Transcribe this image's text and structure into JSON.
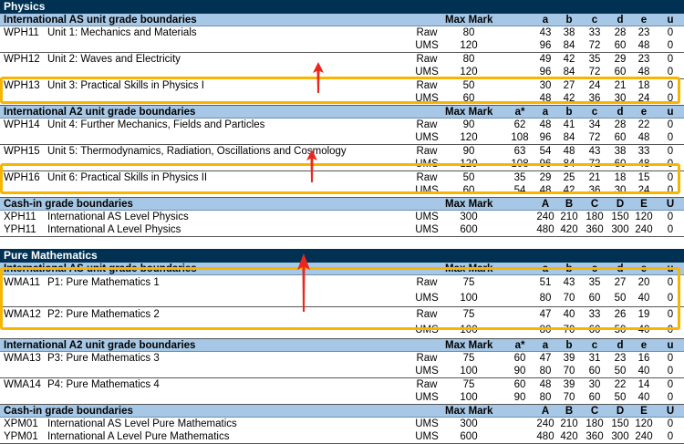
{
  "colors": {
    "title_bg": "#003153",
    "header_bg": "#a6c8e6",
    "highlight": "#f7b500",
    "arrow": "#e8281e"
  },
  "subjects": [
    {
      "title": "Physics",
      "sections": [
        {
          "header": "International AS unit grade boundaries",
          "max_label": "Max Mark",
          "cols": [
            "",
            "a",
            "b",
            "c",
            "d",
            "e",
            "u"
          ],
          "units": [
            {
              "code": "WPH11",
              "name": "Unit 1: Mechanics and Materials",
              "rows": [
                {
                  "type": "Raw",
                  "max": "80",
                  "g": [
                    "",
                    "43",
                    "38",
                    "33",
                    "28",
                    "23",
                    "0"
                  ]
                },
                {
                  "type": "UMS",
                  "max": "120",
                  "g": [
                    "",
                    "96",
                    "84",
                    "72",
                    "60",
                    "48",
                    "0"
                  ]
                }
              ]
            },
            {
              "code": "WPH12",
              "name": "Unit 2: Waves and Electricity",
              "rows": [
                {
                  "type": "Raw",
                  "max": "80",
                  "g": [
                    "",
                    "49",
                    "42",
                    "35",
                    "29",
                    "23",
                    "0"
                  ]
                },
                {
                  "type": "UMS",
                  "max": "120",
                  "g": [
                    "",
                    "96",
                    "84",
                    "72",
                    "60",
                    "48",
                    "0"
                  ]
                }
              ]
            },
            {
              "code": "WPH13",
              "name": "Unit 3: Practical Skills in Physics I",
              "rows": [
                {
                  "type": "Raw",
                  "max": "50",
                  "g": [
                    "",
                    "30",
                    "27",
                    "24",
                    "21",
                    "18",
                    "0"
                  ]
                },
                {
                  "type": "UMS",
                  "max": "60",
                  "g": [
                    "",
                    "48",
                    "42",
                    "36",
                    "30",
                    "24",
                    "0"
                  ]
                }
              ]
            }
          ]
        },
        {
          "header": "International A2 unit grade boundaries",
          "max_label": "Max Mark",
          "cols": [
            "a*",
            "a",
            "b",
            "c",
            "d",
            "e",
            "u"
          ],
          "units": [
            {
              "code": "WPH14",
              "name": "Unit 4: Further Mechanics, Fields and Particles",
              "rows": [
                {
                  "type": "Raw",
                  "max": "90",
                  "g": [
                    "62",
                    "48",
                    "41",
                    "34",
                    "28",
                    "22",
                    "0"
                  ]
                },
                {
                  "type": "UMS",
                  "max": "120",
                  "g": [
                    "108",
                    "96",
                    "84",
                    "72",
                    "60",
                    "48",
                    "0"
                  ]
                }
              ]
            },
            {
              "code": "WPH15",
              "name": "Unit 5: Thermodynamics, Radiation, Oscillations and Cosmology",
              "rows": [
                {
                  "type": "Raw",
                  "max": "90",
                  "g": [
                    "63",
                    "54",
                    "48",
                    "43",
                    "38",
                    "33",
                    "0"
                  ]
                },
                {
                  "type": "UMS",
                  "max": "120",
                  "g": [
                    "108",
                    "96",
                    "84",
                    "72",
                    "60",
                    "48",
                    "0"
                  ]
                }
              ]
            },
            {
              "code": "WPH16",
              "name": "Unit 6: Practical Skills in Physics II",
              "rows": [
                {
                  "type": "Raw",
                  "max": "50",
                  "g": [
                    "35",
                    "29",
                    "25",
                    "21",
                    "18",
                    "15",
                    "0"
                  ]
                },
                {
                  "type": "UMS",
                  "max": "60",
                  "g": [
                    "54",
                    "48",
                    "42",
                    "36",
                    "30",
                    "24",
                    "0"
                  ]
                }
              ]
            }
          ]
        },
        {
          "header": "Cash-in grade boundaries",
          "max_label": "Max Mark",
          "cols": [
            "",
            "A",
            "B",
            "C",
            "D",
            "E",
            "U"
          ],
          "units": [
            {
              "code": "XPH11",
              "name": "International AS Level Physics",
              "single": true,
              "rows": [
                {
                  "type": "UMS",
                  "max": "300",
                  "g": [
                    "",
                    "240",
                    "210",
                    "180",
                    "150",
                    "120",
                    "0"
                  ]
                }
              ]
            },
            {
              "code": "YPH11",
              "name": "International A Level Physics",
              "rows": [
                {
                  "type": "UMS",
                  "max": "600",
                  "g": [
                    "",
                    "480",
                    "420",
                    "360",
                    "300",
                    "240",
                    "0"
                  ]
                }
              ]
            }
          ]
        }
      ]
    },
    {
      "title": "Pure Mathematics",
      "sections": [
        {
          "header": "International AS unit grade boundaries",
          "max_label": "Max Mark",
          "cols": [
            "",
            "a",
            "b",
            "c",
            "d",
            "e",
            "u"
          ],
          "tall": true,
          "units": [
            {
              "code": "WMA11",
              "name": "P1: Pure Mathematics 1",
              "rows": [
                {
                  "type": "Raw",
                  "max": "75",
                  "g": [
                    "",
                    "51",
                    "43",
                    "35",
                    "27",
                    "20",
                    "0"
                  ]
                },
                {
                  "type": "UMS",
                  "max": "100",
                  "g": [
                    "",
                    "80",
                    "70",
                    "60",
                    "50",
                    "40",
                    "0"
                  ]
                }
              ]
            },
            {
              "code": "WMA12",
              "name": "P2: Pure Mathematics 2",
              "rows": [
                {
                  "type": "Raw",
                  "max": "75",
                  "g": [
                    "",
                    "47",
                    "40",
                    "33",
                    "26",
                    "19",
                    "0"
                  ]
                },
                {
                  "type": "UMS",
                  "max": "100",
                  "g": [
                    "",
                    "80",
                    "70",
                    "60",
                    "50",
                    "40",
                    "0"
                  ]
                }
              ]
            }
          ]
        },
        {
          "header": "International A2 unit grade boundaries",
          "max_label": "Max Mark",
          "cols": [
            "a*",
            "a",
            "b",
            "c",
            "d",
            "e",
            "u"
          ],
          "units": [
            {
              "code": "WMA13",
              "name": "P3: Pure Mathematics 3",
              "rows": [
                {
                  "type": "Raw",
                  "max": "75",
                  "g": [
                    "60",
                    "47",
                    "39",
                    "31",
                    "23",
                    "16",
                    "0"
                  ]
                },
                {
                  "type": "UMS",
                  "max": "100",
                  "g": [
                    "90",
                    "80",
                    "70",
                    "60",
                    "50",
                    "40",
                    "0"
                  ]
                }
              ]
            },
            {
              "code": "WMA14",
              "name": "P4: Pure Mathematics 4",
              "rows": [
                {
                  "type": "Raw",
                  "max": "75",
                  "g": [
                    "60",
                    "48",
                    "39",
                    "30",
                    "22",
                    "14",
                    "0"
                  ]
                },
                {
                  "type": "UMS",
                  "max": "100",
                  "g": [
                    "90",
                    "80",
                    "70",
                    "60",
                    "50",
                    "40",
                    "0"
                  ]
                }
              ]
            }
          ]
        },
        {
          "header": "Cash-in grade boundaries",
          "max_label": "Max Mark",
          "cols": [
            "",
            "A",
            "B",
            "C",
            "D",
            "E",
            "U"
          ],
          "units": [
            {
              "code": "XPM01",
              "name": "International AS Level Pure Mathematics",
              "single": true,
              "rows": [
                {
                  "type": "UMS",
                  "max": "300",
                  "g": [
                    "",
                    "240",
                    "210",
                    "180",
                    "150",
                    "120",
                    "0"
                  ]
                }
              ]
            },
            {
              "code": "YPM01",
              "name": "International A Level Pure Mathematics",
              "rows": [
                {
                  "type": "UMS",
                  "max": "600",
                  "g": [
                    "",
                    "480",
                    "420",
                    "360",
                    "300",
                    "240",
                    "0"
                  ]
                }
              ]
            }
          ]
        }
      ]
    }
  ]
}
